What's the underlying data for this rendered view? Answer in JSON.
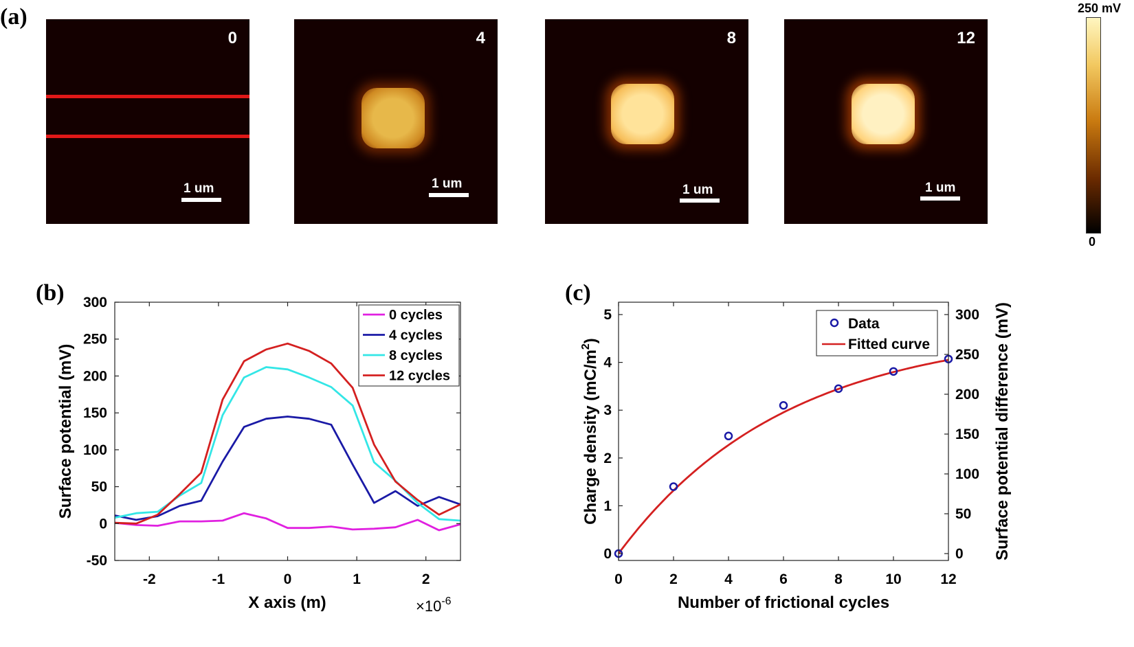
{
  "panel_a": {
    "label": "(a)",
    "images": [
      {
        "cycles": "0",
        "level": 0.0
      },
      {
        "cycles": "4",
        "level": 0.58
      },
      {
        "cycles": "8",
        "level": 0.84
      },
      {
        "cycles": "12",
        "level": 0.97
      }
    ],
    "scalebar_label": "1 um",
    "colorbar": {
      "max_label": "250 mV",
      "min_label": "0"
    }
  },
  "panel_b": {
    "label": "(b)"
  },
  "panel_c": {
    "label": "(c)"
  },
  "chart_data": [
    {
      "type": "line",
      "id": "b",
      "xlabel": "X axis (m)",
      "ylabel": "Surface potential (mV)",
      "x_exponent": "×10-6",
      "xlim": [
        -2.5,
        2.5
      ],
      "ylim": [
        -50,
        300
      ],
      "xticks": [
        "-2",
        "-1",
        "0",
        "1",
        "2"
      ],
      "yticks": [
        "-50",
        "0",
        "50",
        "100",
        "150",
        "200",
        "250",
        "300"
      ],
      "x": [
        -2.5,
        -2.19,
        -1.88,
        -1.56,
        -1.25,
        -0.94,
        -0.63,
        -0.31,
        0,
        0.31,
        0.63,
        0.94,
        1.25,
        1.56,
        1.88,
        2.19,
        2.5
      ],
      "series": [
        {
          "name": "0 cycles",
          "color": "#e020e0",
          "values": [
            1,
            -2,
            -3,
            3,
            3,
            4,
            14,
            7,
            -6,
            -6,
            -4,
            -8,
            -7,
            -5,
            5,
            -9,
            -1
          ]
        },
        {
          "name": "4 cycles",
          "color": "#1a1aa6",
          "values": [
            11,
            5,
            10,
            24,
            31,
            84,
            131,
            142,
            145,
            142,
            134,
            80,
            28,
            44,
            24,
            36,
            26
          ]
        },
        {
          "name": "8 cycles",
          "color": "#33e6e6",
          "values": [
            8,
            14,
            16,
            38,
            55,
            147,
            198,
            212,
            209,
            198,
            185,
            160,
            83,
            58,
            28,
            6,
            4
          ]
        },
        {
          "name": "12 cycles",
          "color": "#d42020",
          "values": [
            1,
            0,
            12,
            40,
            69,
            168,
            220,
            236,
            244,
            234,
            217,
            184,
            107,
            57,
            32,
            12,
            26
          ]
        }
      ]
    },
    {
      "type": "scatter",
      "id": "c",
      "xlabel": "Number of frictional cycles",
      "ylabel": "Charge density (mC/m2)",
      "ylabel_right": "Surface potential difference (mV)",
      "xlim": [
        0,
        12
      ],
      "ylim": [
        0,
        5
      ],
      "ylim_right": [
        0,
        300
      ],
      "xticks": [
        "0",
        "2",
        "4",
        "6",
        "8",
        "10",
        "12"
      ],
      "yticks": [
        "0",
        "1",
        "2",
        "3",
        "4",
        "5"
      ],
      "yticks_right": [
        "0",
        "50",
        "100",
        "150",
        "200",
        "250",
        "300"
      ],
      "data": {
        "name": "Data",
        "color": "#1a1aa6",
        "x": [
          0,
          2,
          4,
          6,
          8,
          10,
          12
        ],
        "y": [
          0,
          1.4,
          2.46,
          3.1,
          3.45,
          3.81,
          4.07
        ]
      },
      "fit": {
        "name": "Fitted curve",
        "color": "#d42020",
        "amplitude": 4.7,
        "rate": 0.165
      }
    }
  ]
}
